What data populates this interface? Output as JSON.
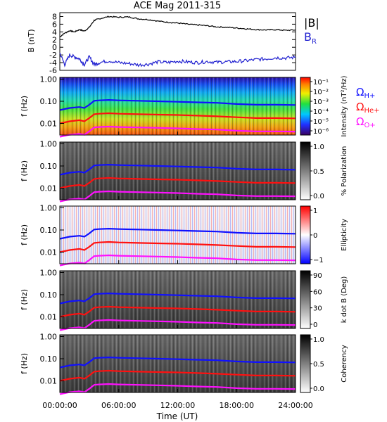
{
  "chart_data": {
    "title": "ACE Mag 2011-315",
    "type": "line",
    "x_axis": {
      "label": "Time (UT)",
      "range_hours": [
        0,
        24
      ],
      "ticks": [
        "00:00:00",
        "06:00:00",
        "12:00:00",
        "18:00:00",
        "24:00:00"
      ],
      "tick_hours": [
        0,
        6,
        12,
        18,
        24
      ]
    },
    "mag_panel": {
      "ylabel": "B (nT)",
      "ylim": [
        -6,
        9
      ],
      "yticks": [
        "8",
        "6",
        "4",
        "2",
        "0",
        "-2",
        "-4",
        "-6"
      ],
      "ytick_values": [
        8,
        6,
        4,
        2,
        0,
        -2,
        -4,
        -6
      ],
      "series": [
        {
          "name": "|B|",
          "color": "#000000",
          "x": [
            0,
            0.5,
            1,
            1.5,
            2,
            2.5,
            3,
            3.5,
            4,
            5,
            6,
            7,
            8,
            9,
            10,
            11,
            12,
            13,
            14,
            15,
            16,
            17,
            18,
            19,
            20,
            21,
            22,
            23,
            24
          ],
          "values": [
            2.7,
            3.7,
            4.3,
            4.0,
            4.6,
            4.2,
            5.2,
            7.0,
            7.4,
            8.0,
            7.8,
            7.9,
            7.4,
            7.2,
            6.8,
            6.5,
            6.3,
            6.0,
            5.8,
            5.6,
            5.3,
            5.2,
            5.0,
            4.8,
            4.6,
            4.5,
            4.6,
            4.4,
            4.5
          ]
        },
        {
          "name": "B_R",
          "color": "#2020d0",
          "x": [
            0,
            0.5,
            1,
            1.5,
            2,
            2.5,
            3,
            3.5,
            4,
            5,
            6,
            7,
            8,
            9,
            10,
            11,
            12,
            13,
            14,
            15,
            16,
            17,
            18,
            19,
            20,
            21,
            22,
            23,
            24
          ],
          "values": [
            -1.5,
            -4.5,
            -2.0,
            -2.5,
            -3.0,
            -4.5,
            -2.5,
            -4.5,
            -4.0,
            -3.5,
            -4.0,
            -4.2,
            -4.6,
            -4.4,
            -3.8,
            -4.0,
            -3.6,
            -3.8,
            -4.0,
            -3.7,
            -3.9,
            -3.8,
            -3.7,
            -3.5,
            -3.2,
            -3.0,
            -2.7,
            -2.8,
            -2.6
          ]
        }
      ],
      "legend": [
        {
          "text": "|B|",
          "color": "#000000"
        },
        {
          "text": "B",
          "sub": "R",
          "color": "#2020d0"
        }
      ]
    },
    "spectral_panels": [
      {
        "id": "intensity",
        "type": "heatmap",
        "cbar_label": "Intensity (nT²/Hz)",
        "cbar_ticks": [
          "10⁻¹",
          "10⁻²",
          "10⁻³",
          "10⁻⁴",
          "10⁻⁵",
          "10⁻⁶"
        ],
        "colormap": "rainbow"
      },
      {
        "id": "polarization",
        "type": "heatmap",
        "cbar_label": "% Polarization",
        "cbar_ticks": [
          "1.0",
          "0.5",
          "0.0"
        ],
        "colormap": "gray"
      },
      {
        "id": "ellipticity",
        "type": "heatmap",
        "cbar_label": "Ellipticity",
        "cbar_ticks": [
          "1",
          "0",
          "−1"
        ],
        "colormap": "bwr"
      },
      {
        "id": "kdotb",
        "type": "heatmap",
        "cbar_label": "k dot B (Deg)",
        "cbar_ticks": [
          "90",
          "60",
          "30",
          "0"
        ],
        "colormap": "gray"
      },
      {
        "id": "coherency",
        "type": "heatmap",
        "cbar_label": "Coherency",
        "cbar_ticks": [
          "1.0",
          "0.5",
          "0.0"
        ],
        "colormap": "gray"
      }
    ],
    "freq_axis": {
      "label": "f (Hz)",
      "scale": "log",
      "ylim": [
        0.003,
        1.2
      ],
      "ticks": [
        "1.00",
        "0.10",
        "0.01"
      ],
      "tick_values": [
        1.0,
        0.1,
        0.01
      ]
    },
    "gyrofrequencies": {
      "x": [
        0,
        1,
        2,
        2.5,
        3,
        3.5,
        4,
        5,
        6,
        8,
        10,
        12,
        14,
        16,
        18,
        20,
        22,
        24
      ],
      "series": [
        {
          "name": "Ω_H+",
          "color": "#1010ff",
          "values": [
            0.04,
            0.05,
            0.055,
            0.05,
            0.07,
            0.105,
            0.11,
            0.115,
            0.11,
            0.105,
            0.1,
            0.095,
            0.09,
            0.085,
            0.075,
            0.07,
            0.07,
            0.068
          ]
        },
        {
          "name": "Ω_He+",
          "color": "#ff1010",
          "values": [
            0.01,
            0.0125,
            0.014,
            0.0125,
            0.0175,
            0.026,
            0.0275,
            0.029,
            0.0275,
            0.026,
            0.025,
            0.024,
            0.0225,
            0.021,
            0.019,
            0.0175,
            0.0175,
            0.017
          ]
        },
        {
          "name": "Ω_O+",
          "color": "#ff10ff",
          "values": [
            0.0025,
            0.0031,
            0.0034,
            0.0031,
            0.0044,
            0.0066,
            0.0069,
            0.0072,
            0.0069,
            0.0066,
            0.0063,
            0.006,
            0.0056,
            0.0053,
            0.0047,
            0.0044,
            0.0044,
            0.0043
          ]
        }
      ],
      "legend": [
        {
          "text": "Ω",
          "sub": "H+",
          "color": "#1010ff"
        },
        {
          "text": "Ω",
          "sub": "He+",
          "color": "#ff1010"
        },
        {
          "text": "Ω",
          "sub": "O+",
          "color": "#ff10ff"
        }
      ]
    }
  }
}
